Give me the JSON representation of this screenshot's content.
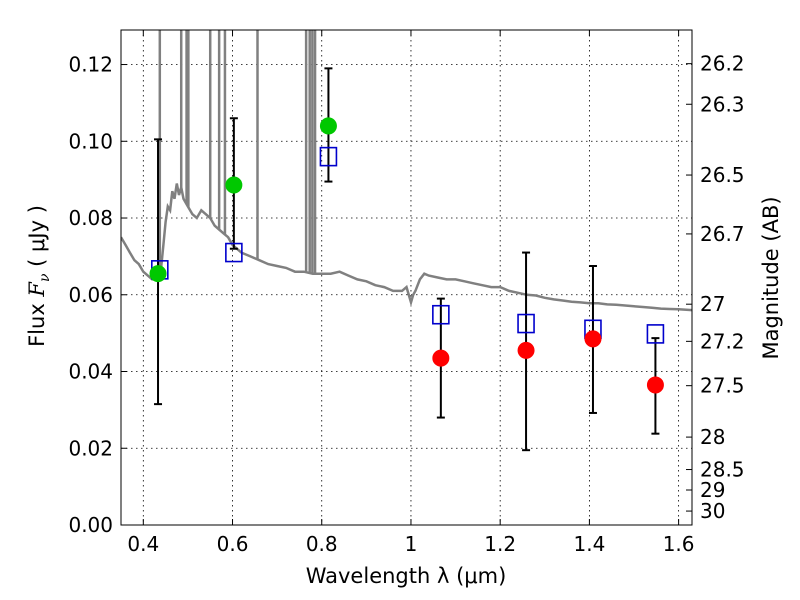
{
  "chart_data": {
    "type": "scatter",
    "xlabel": "Wavelength  λ (μm)",
    "ylabel_prefix": "Flux  ",
    "ylabel_var": "F",
    "ylabel_sub": "ν",
    "ylabel_unit": "  ( μJy )",
    "y2label": "Magnitude (AB)",
    "xlim": [
      0.35,
      1.63
    ],
    "ylim": [
      0.0,
      0.129
    ],
    "grid": true,
    "x_ticks": [
      0.4,
      0.6,
      0.8,
      1.0,
      1.2,
      1.4,
      1.6
    ],
    "x_tick_labels": [
      "0.4",
      "0.6",
      "0.8",
      "1",
      "1.2",
      "1.4",
      "1.6"
    ],
    "y_ticks": [
      0.0,
      0.02,
      0.04,
      0.06,
      0.08,
      0.1,
      0.12
    ],
    "y_tick_labels": [
      "0.00",
      "0.02",
      "0.04",
      "0.06",
      "0.08",
      "0.10",
      "0.12"
    ],
    "mag_ticks": [
      {
        "mag": 26.2,
        "label": "26.2"
      },
      {
        "mag": 26.3,
        "label": "26.3"
      },
      {
        "mag": 26.5,
        "label": "26.5"
      },
      {
        "mag": 26.7,
        "label": "26.7"
      },
      {
        "mag": 27.0,
        "label": "27"
      },
      {
        "mag": 27.2,
        "label": "27.2"
      },
      {
        "mag": 27.5,
        "label": "27.5"
      },
      {
        "mag": 28.0,
        "label": "28"
      },
      {
        "mag": 28.5,
        "label": "28.5"
      },
      {
        "mag": 29.0,
        "label": "29"
      },
      {
        "mag": 30.0,
        "label": "30"
      }
    ],
    "series": [
      {
        "name": "model-spectrum",
        "kind": "line",
        "color": "#808080",
        "points": [
          [
            0.35,
            0.075
          ],
          [
            0.36,
            0.073
          ],
          [
            0.37,
            0.071
          ],
          [
            0.38,
            0.069
          ],
          [
            0.39,
            0.068
          ],
          [
            0.4,
            0.066
          ],
          [
            0.41,
            0.065
          ],
          [
            0.42,
            0.064
          ],
          [
            0.43,
            0.064
          ],
          [
            0.44,
            0.067
          ],
          [
            0.445,
            0.073
          ],
          [
            0.45,
            0.079
          ],
          [
            0.455,
            0.083
          ],
          [
            0.46,
            0.082
          ],
          [
            0.465,
            0.087
          ],
          [
            0.47,
            0.085
          ],
          [
            0.475,
            0.089
          ],
          [
            0.48,
            0.086
          ],
          [
            0.485,
            0.088
          ],
          [
            0.49,
            0.085
          ],
          [
            0.5,
            0.083
          ],
          [
            0.51,
            0.081
          ],
          [
            0.52,
            0.08
          ],
          [
            0.53,
            0.082
          ],
          [
            0.54,
            0.081
          ],
          [
            0.55,
            0.08
          ],
          [
            0.56,
            0.078
          ],
          [
            0.57,
            0.077
          ],
          [
            0.58,
            0.076
          ],
          [
            0.59,
            0.075
          ],
          [
            0.6,
            0.073
          ],
          [
            0.62,
            0.071
          ],
          [
            0.64,
            0.07
          ],
          [
            0.66,
            0.069
          ],
          [
            0.68,
            0.068
          ],
          [
            0.7,
            0.0675
          ],
          [
            0.72,
            0.067
          ],
          [
            0.74,
            0.066
          ],
          [
            0.76,
            0.066
          ],
          [
            0.78,
            0.0655
          ],
          [
            0.8,
            0.0655
          ],
          [
            0.82,
            0.0655
          ],
          [
            0.84,
            0.066
          ],
          [
            0.86,
            0.065
          ],
          [
            0.88,
            0.064
          ],
          [
            0.9,
            0.0635
          ],
          [
            0.92,
            0.0625
          ],
          [
            0.94,
            0.062
          ],
          [
            0.96,
            0.061
          ],
          [
            0.98,
            0.061
          ],
          [
            0.99,
            0.062
          ],
          [
            1.0,
            0.058
          ],
          [
            1.005,
            0.06
          ],
          [
            1.01,
            0.061
          ],
          [
            1.02,
            0.064
          ],
          [
            1.03,
            0.0655
          ],
          [
            1.04,
            0.065
          ],
          [
            1.06,
            0.0645
          ],
          [
            1.08,
            0.064
          ],
          [
            1.1,
            0.064
          ],
          [
            1.12,
            0.0635
          ],
          [
            1.14,
            0.063
          ],
          [
            1.16,
            0.0625
          ],
          [
            1.18,
            0.062
          ],
          [
            1.2,
            0.062
          ],
          [
            1.22,
            0.061
          ],
          [
            1.24,
            0.0605
          ],
          [
            1.26,
            0.06
          ],
          [
            1.28,
            0.0598
          ],
          [
            1.3,
            0.0592
          ],
          [
            1.32,
            0.0588
          ],
          [
            1.34,
            0.0585
          ],
          [
            1.36,
            0.0582
          ],
          [
            1.38,
            0.058
          ],
          [
            1.4,
            0.0578
          ],
          [
            1.42,
            0.0578
          ],
          [
            1.44,
            0.0575
          ],
          [
            1.46,
            0.0574
          ],
          [
            1.48,
            0.0572
          ],
          [
            1.5,
            0.057
          ],
          [
            1.52,
            0.0568
          ],
          [
            1.54,
            0.0566
          ],
          [
            1.56,
            0.0564
          ],
          [
            1.58,
            0.0563
          ],
          [
            1.6,
            0.0562
          ],
          [
            1.63,
            0.056
          ]
        ],
        "emission_lines": [
          0.437,
          0.485,
          0.497,
          0.501,
          0.55,
          0.57,
          0.583,
          0.656,
          0.765,
          0.773,
          0.779,
          0.785
        ]
      },
      {
        "name": "model-photometry",
        "kind": "open-square",
        "color": "#0000cc",
        "x": [
          0.437,
          0.603,
          0.815,
          1.067,
          1.258,
          1.408,
          1.548
        ],
        "y": [
          0.0665,
          0.071,
          0.096,
          0.0548,
          0.0525,
          0.051,
          0.0498
        ]
      },
      {
        "name": "optical-detections",
        "kind": "filled-circle",
        "color": "#00c800",
        "x": [
          0.433,
          0.603,
          0.815
        ],
        "y": [
          0.0655,
          0.0886,
          0.104
        ],
        "err_low": [
          0.0315,
          0.072,
          0.0895
        ],
        "err_high": [
          0.1005,
          0.106,
          0.119
        ]
      },
      {
        "name": "nir-detections",
        "kind": "filled-circle",
        "color": "#ff0000",
        "x": [
          1.067,
          1.258,
          1.408,
          1.548
        ],
        "y": [
          0.0435,
          0.0455,
          0.0485,
          0.0365
        ],
        "err_low": [
          0.028,
          0.0195,
          0.0292,
          0.0238
        ],
        "err_high": [
          0.059,
          0.071,
          0.0675,
          0.0487
        ]
      }
    ],
    "errorbar_color": "#000000"
  }
}
